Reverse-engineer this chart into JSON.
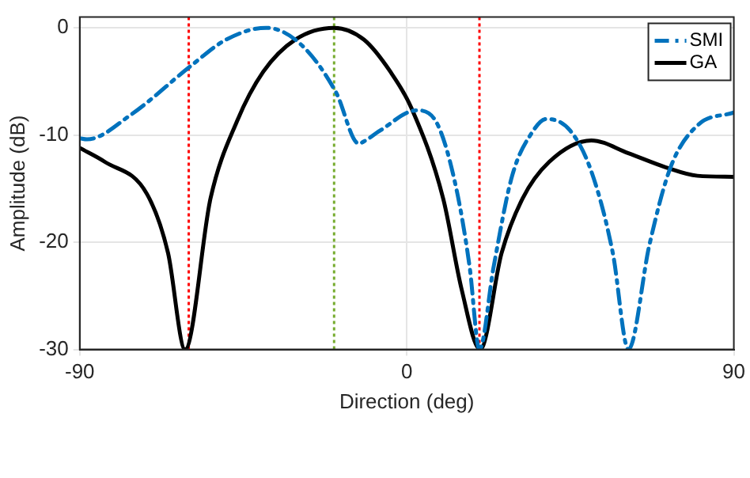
{
  "chart_data": {
    "type": "line",
    "xlabel": "Direction (deg)",
    "ylabel": "Amplitude (dB)",
    "xlim": [
      -90,
      90
    ],
    "xticks": [
      -90,
      0,
      90
    ],
    "ylim": [
      -30,
      1
    ],
    "yticks": [
      -30,
      -20,
      -10,
      0
    ],
    "grid": true,
    "legend": "top right",
    "marker": "none",
    "series": [
      {
        "name": "SMI",
        "color": "#0072bd",
        "line_style": "dashed",
        "x": [
          -90,
          -88,
          -75.9,
          -59.6,
          -49.7,
          -38.7,
          -29.3,
          -19.5,
          -13.2,
          -11.8,
          -7.4,
          2.7,
          8.6,
          13.7,
          17.3,
          20,
          23.9,
          29,
          34.8,
          38.4,
          45,
          50.8,
          56.7,
          61,
          66.8,
          72.6,
          80,
          90
        ],
        "values": [
          -10.3,
          -10.4,
          -8.1,
          -3.6,
          -1.1,
          0,
          -1.5,
          -6,
          -10.8,
          -10.6,
          -9.6,
          -7.7,
          -9.1,
          -15.1,
          -22.3,
          -30,
          -22.3,
          -13.8,
          -9.6,
          -8.5,
          -9.6,
          -13.4,
          -21,
          -30,
          -20.2,
          -13,
          -9.1,
          -7.9
        ]
      },
      {
        "name": "GA",
        "color": "#000000",
        "line_style": "solid",
        "x": [
          -90,
          -83.1,
          -71.5,
          -65.7,
          -61,
          -54,
          -46.7,
          -39.5,
          -30.7,
          -20,
          -11.8,
          -4.5,
          1.3,
          10,
          15.1,
          20.2,
          26.1,
          31.9,
          39.2,
          50.8,
          61,
          71.2,
          80,
          90
        ],
        "values": [
          -11.2,
          -12.5,
          -15.5,
          -21,
          -30,
          -15.9,
          -8.7,
          -4.1,
          -1.1,
          0,
          -1.1,
          -4.1,
          -7.5,
          -15.9,
          -24.4,
          -30,
          -21,
          -15.9,
          -12.5,
          -10.5,
          -11.7,
          -13,
          -13.8,
          -13.9
        ]
      }
    ],
    "ref_lines": [
      {
        "axis": "x",
        "value": -60,
        "color": "#ff0000",
        "line_style": "dotted"
      },
      {
        "axis": "x",
        "value": -20,
        "color": "#77ac30",
        "line_style": "dotted"
      },
      {
        "axis": "x",
        "value": 20,
        "color": "#ff0000",
        "line_style": "dotted"
      }
    ]
  }
}
